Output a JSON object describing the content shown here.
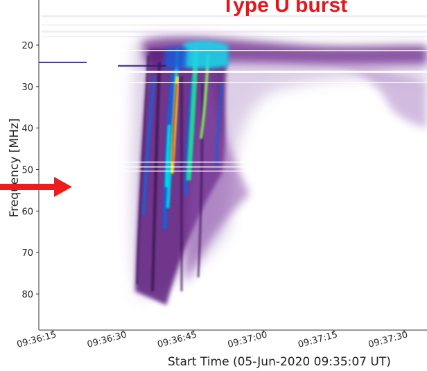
{
  "chart_data": {
    "type": "heatmap",
    "title": "Type U burst",
    "xlabel": "Start Time (05-Jun-2020 09:35:07 UT)",
    "ylabel": "Frequency  [MHz]",
    "x_tick_labels": [
      "09:36:15",
      "09:36:30",
      "09:36:45",
      "09:37:00",
      "09:37:15",
      "09:37:30"
    ],
    "y_ticks": [
      20,
      30,
      40,
      50,
      60,
      70,
      80
    ],
    "ylim": [
      89,
      10
    ],
    "xlim_seconds_after_0936": [
      13,
      64
    ],
    "annotation": {
      "kind": "arrow",
      "points_to_frequency_mhz": 55
    },
    "colors": {
      "title": "#e8141c",
      "arrow": "#ee1c1c"
    }
  }
}
